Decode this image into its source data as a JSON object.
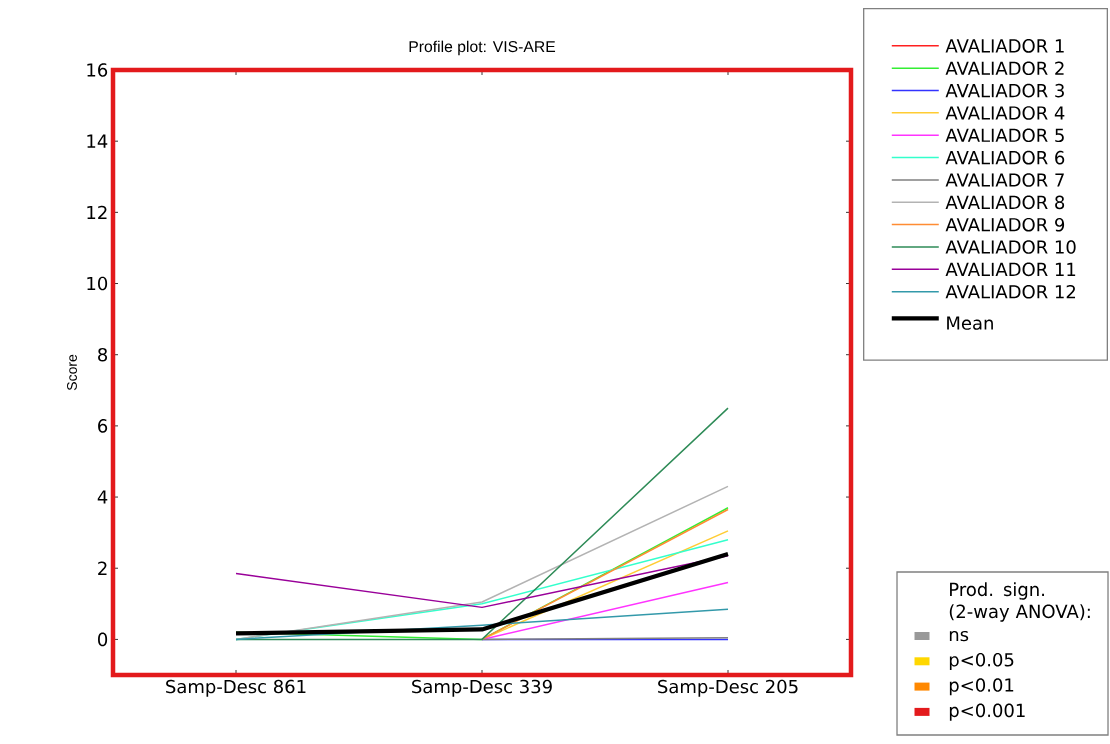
{
  "chart_data": {
    "type": "line",
    "title": "Profile plot: VIS-ARE",
    "ylabel": "Score",
    "categories": [
      "Samp-Desc 861",
      "Samp-Desc 339",
      "Samp-Desc 205"
    ],
    "ylim": [
      -1,
      16
    ],
    "yticks": [
      0,
      2,
      4,
      6,
      8,
      10,
      12,
      14,
      16
    ],
    "series": [
      {
        "name": "AVALIADOR 1",
        "color": "#ff2020",
        "values": [
          null,
          null,
          null
        ]
      },
      {
        "name": "AVALIADOR 2",
        "color": "#33ee33",
        "values": [
          0.2,
          0,
          3.7
        ]
      },
      {
        "name": "AVALIADOR 3",
        "color": "#3333ff",
        "values": [
          null,
          0,
          0
        ]
      },
      {
        "name": "AVALIADOR 4",
        "color": "#ffcc33",
        "values": [
          null,
          0,
          3.05
        ]
      },
      {
        "name": "AVALIADOR 5",
        "color": "#ff33ff",
        "values": [
          null,
          0,
          1.6
        ]
      },
      {
        "name": "AVALIADOR 6",
        "color": "#33ffcc",
        "values": [
          0,
          1.0,
          2.8
        ]
      },
      {
        "name": "AVALIADOR 7",
        "color": "#808080",
        "values": [
          null,
          0,
          0.05
        ]
      },
      {
        "name": "AVALIADOR 8",
        "color": "#b3b3b3",
        "values": [
          0,
          1.05,
          4.3
        ]
      },
      {
        "name": "AVALIADOR 9",
        "color": "#ff8c33",
        "values": [
          null,
          0,
          3.65
        ]
      },
      {
        "name": "AVALIADOR 10",
        "color": "#2e8b57",
        "values": [
          0,
          0,
          6.5
        ]
      },
      {
        "name": "AVALIADOR 11",
        "color": "#990099",
        "values": [
          1.85,
          0.9,
          2.35
        ]
      },
      {
        "name": "AVALIADOR 12",
        "color": "#3399aa",
        "values": [
          0,
          0.4,
          0.85
        ]
      },
      {
        "name": "Mean",
        "color": "#000000",
        "values": [
          0.17,
          0.28,
          2.4
        ]
      }
    ],
    "legend": "right",
    "line_style": "solid",
    "annotations": [
      "Prod. sign. (2-way ANOVA):",
      "ns",
      "p<0.05",
      "p<0.01",
      "p<0.001"
    ]
  }
}
